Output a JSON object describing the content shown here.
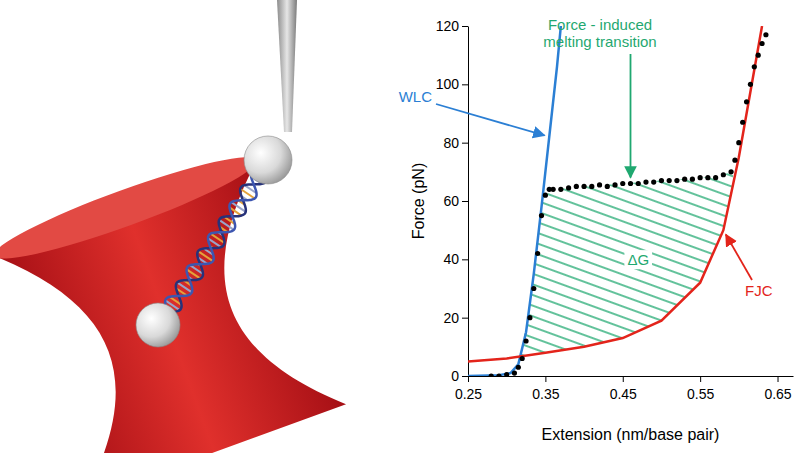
{
  "chart_data": {
    "type": "scatter",
    "x_label": "Extension (nm/base pair)",
    "y_label": "Force (pN)",
    "xlim": [
      0.25,
      0.67
    ],
    "ylim": [
      0,
      120
    ],
    "xticks": [
      0.25,
      0.35,
      0.45,
      0.55,
      0.65
    ],
    "yticks": [
      0,
      20,
      40,
      60,
      80,
      100,
      120
    ],
    "annotations": [
      "Force - induced melting transition"
    ],
    "area": {
      "label": "ΔG",
      "color": "#1fa870",
      "x": [
        0.318,
        0.33,
        0.34,
        0.345,
        0.35,
        0.36,
        0.38,
        0.4,
        0.45,
        0.5,
        0.55,
        0.58,
        0.59,
        0.593
      ],
      "upper": [
        7,
        25,
        46,
        58,
        62,
        64,
        64.5,
        65,
        66,
        67,
        68,
        69,
        70,
        71
      ],
      "lower": [
        7,
        7.5,
        7.8,
        8,
        8,
        8.5,
        9,
        10,
        13,
        19,
        32,
        50,
        62,
        70
      ]
    },
    "series": [
      {
        "name": "WLC",
        "type": "line",
        "color": "#2b7fd4",
        "line_style": "solid",
        "x": [
          0.25,
          0.29,
          0.305,
          0.315,
          0.325,
          0.335,
          0.345,
          0.355,
          0.365,
          0.37
        ],
        "values": [
          0,
          0.3,
          1,
          4,
          15,
          35,
          58,
          82,
          106,
          120
        ]
      },
      {
        "name": "FJC",
        "type": "line",
        "color": "#e3241b",
        "line_style": "solid",
        "x": [
          0.25,
          0.3,
          0.35,
          0.4,
          0.45,
          0.5,
          0.55,
          0.58,
          0.6,
          0.62,
          0.63
        ],
        "values": [
          5,
          6,
          8,
          10,
          13,
          19,
          32,
          50,
          75,
          105,
          120
        ]
      },
      {
        "type": "scatter",
        "color": "#000000",
        "marker": "circle",
        "x": [
          0.28,
          0.29,
          0.3,
          0.31,
          0.315,
          0.32,
          0.325,
          0.33,
          0.335,
          0.34,
          0.345,
          0.35,
          0.355,
          0.36,
          0.37,
          0.38,
          0.39,
          0.4,
          0.41,
          0.42,
          0.43,
          0.44,
          0.45,
          0.46,
          0.47,
          0.48,
          0.49,
          0.5,
          0.51,
          0.52,
          0.53,
          0.54,
          0.55,
          0.56,
          0.57,
          0.58,
          0.59,
          0.595,
          0.6,
          0.605,
          0.61,
          0.615,
          0.62,
          0.625,
          0.63,
          0.635
        ],
        "values": [
          0,
          0,
          0.5,
          1,
          3,
          6,
          12,
          20,
          30,
          42,
          55,
          62,
          64,
          64,
          64,
          64.5,
          65,
          65,
          65,
          65.5,
          65,
          65.5,
          66,
          66,
          66,
          66.5,
          66.5,
          67,
          67,
          67,
          67.5,
          67.5,
          68,
          68,
          68,
          69,
          70,
          74,
          80,
          87,
          94,
          100,
          106,
          110,
          114,
          117
        ]
      }
    ]
  }
}
